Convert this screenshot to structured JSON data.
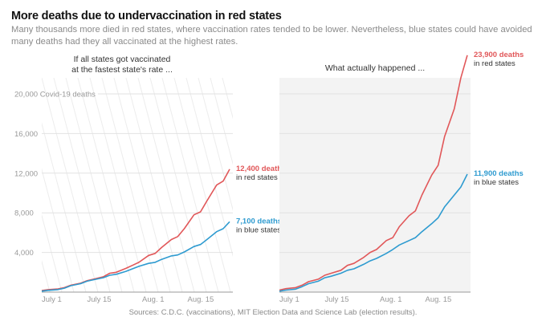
{
  "header": {
    "title": "More deaths due to undervaccination in red states",
    "subtitle": "Many thousands more died in red states, where vaccination rates tended to be lower. Nevertheless, blue states could have avoided many deaths had they all vaccinated at the highest rates."
  },
  "source": "Sources: C.D.C. (vaccinations), MIT Election Data and Science Lab (election results).",
  "colors": {
    "red": "#e15759",
    "blue": "#2e9bd0",
    "grid": "#e2e2e2",
    "panel_bg": "#f3f3f3",
    "hatch": "#ececec"
  },
  "chart_data": [
    {
      "type": "line",
      "title": "If all states got vaccinated at the fastest state's rate ...",
      "title_lines": [
        "If all states got vaccinated",
        "at the fastest state's rate ..."
      ],
      "xlabel": "",
      "ylabel": "Covid-19 deaths",
      "ylim": [
        0,
        20000
      ],
      "xlim_days": [
        0,
        59
      ],
      "yticks": [
        {
          "value": 4000,
          "label": "4,000"
        },
        {
          "value": 8000,
          "label": "8,000"
        },
        {
          "value": 12000,
          "label": "12,000"
        },
        {
          "value": 16000,
          "label": "16,000"
        },
        {
          "value": 20000,
          "label": "20,000 Covid-19 deaths"
        }
      ],
      "xticks": [
        {
          "day": 0,
          "label": "July 1"
        },
        {
          "day": 14,
          "label": "July 15"
        },
        {
          "day": 31,
          "label": "Aug. 1"
        },
        {
          "day": 45,
          "label": "Aug. 15"
        }
      ],
      "grid": true,
      "background": "hatched",
      "series": [
        {
          "name": "red states",
          "color_key": "red",
          "end_label": "12,400 deaths",
          "end_sublabel": "in red states",
          "x": [
            0,
            2,
            5,
            7,
            9,
            12,
            14,
            16,
            19,
            21,
            23,
            26,
            28,
            30,
            33,
            35,
            37,
            40,
            42,
            44,
            47,
            49,
            51,
            54,
            56,
            58
          ],
          "y": [
            150,
            250,
            320,
            450,
            700,
            900,
            1150,
            1300,
            1550,
            1900,
            2000,
            2400,
            2700,
            3000,
            3700,
            3900,
            4500,
            5300,
            5600,
            6400,
            7800,
            8100,
            9200,
            10800,
            11200,
            12400
          ]
        },
        {
          "name": "blue states",
          "color_key": "blue",
          "end_label": "7,100 deaths",
          "end_sublabel": "in blue states",
          "x": [
            0,
            2,
            5,
            7,
            9,
            12,
            14,
            16,
            19,
            21,
            23,
            26,
            28,
            30,
            33,
            35,
            37,
            40,
            42,
            44,
            47,
            49,
            51,
            54,
            56,
            58
          ],
          "y": [
            100,
            180,
            250,
            400,
            650,
            850,
            1100,
            1250,
            1450,
            1700,
            1800,
            2100,
            2350,
            2600,
            2900,
            3000,
            3300,
            3650,
            3750,
            4050,
            4600,
            4800,
            5300,
            6100,
            6400,
            7100
          ]
        }
      ]
    },
    {
      "type": "line",
      "title": "What actually happened ...",
      "title_lines": [
        "What actually happened ..."
      ],
      "xlabel": "",
      "ylabel": "Covid-19 deaths",
      "ylim": [
        0,
        20000
      ],
      "xlim_days": [
        0,
        59
      ],
      "xticks": [
        {
          "day": 0,
          "label": "July 1"
        },
        {
          "day": 14,
          "label": "July 15"
        },
        {
          "day": 31,
          "label": "Aug. 1"
        },
        {
          "day": 45,
          "label": "Aug. 15"
        }
      ],
      "grid": true,
      "background": "gray",
      "series": [
        {
          "name": "red states",
          "color_key": "red",
          "end_label": "23,900 deaths",
          "end_sublabel": "in red states",
          "x": [
            0,
            2,
            5,
            7,
            9,
            12,
            14,
            16,
            19,
            21,
            23,
            26,
            28,
            30,
            33,
            35,
            37,
            40,
            42,
            44,
            47,
            49,
            51,
            54,
            56,
            58
          ],
          "y": [
            200,
            350,
            450,
            700,
            1050,
            1300,
            1700,
            1900,
            2200,
            2700,
            2900,
            3500,
            4000,
            4300,
            5200,
            5500,
            6600,
            7700,
            8200,
            9800,
            11800,
            12800,
            15700,
            18500,
            21600,
            23900
          ]
        },
        {
          "name": "blue states",
          "color_key": "blue",
          "end_label": "11,900 deaths",
          "end_sublabel": "in blue states",
          "x": [
            0,
            2,
            5,
            7,
            9,
            12,
            14,
            16,
            19,
            21,
            23,
            26,
            28,
            30,
            33,
            35,
            37,
            40,
            42,
            44,
            47,
            49,
            51,
            54,
            56,
            58
          ],
          "y": [
            100,
            200,
            300,
            550,
            850,
            1100,
            1450,
            1600,
            1900,
            2200,
            2350,
            2800,
            3150,
            3400,
            3900,
            4300,
            4750,
            5200,
            5500,
            6100,
            6900,
            7500,
            8600,
            9800,
            10600,
            11900
          ]
        }
      ]
    }
  ]
}
